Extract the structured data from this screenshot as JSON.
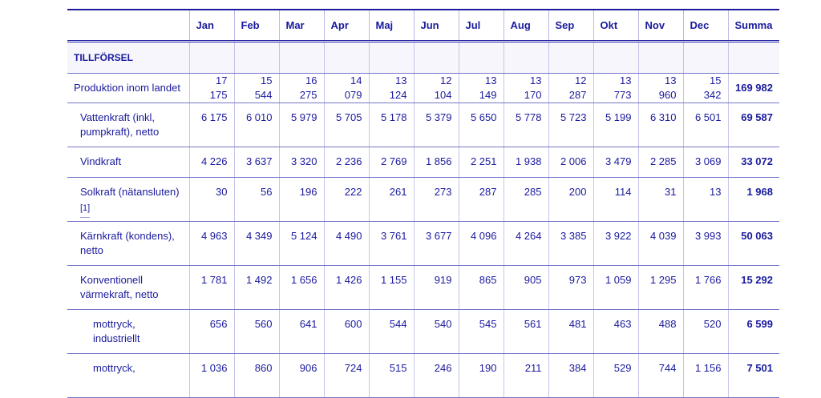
{
  "table": {
    "headers": [
      "",
      "Jan",
      "Feb",
      "Mar",
      "Apr",
      "Maj",
      "Jun",
      "Jul",
      "Aug",
      "Sep",
      "Okt",
      "Nov",
      "Dec",
      "Summa"
    ],
    "section": "TILLFÖRSEL",
    "rows": [
      {
        "label": "Produktion inom landet",
        "values": [
          "17 175",
          "15 544",
          "16 275",
          "14 079",
          "13 124",
          "12 104",
          "13 149",
          "13 170",
          "12 287",
          "13 773",
          "13 960",
          "15 342"
        ],
        "sum": "169 982"
      },
      {
        "label": "Vattenkraft (inkl, pumpkraft), netto",
        "values": [
          "6 175",
          "6 010",
          "5 979",
          "5 705",
          "5 178",
          "5 379",
          "5 650",
          "5 778",
          "5 723",
          "5 199",
          "6 310",
          "6 501"
        ],
        "sum": "69 587"
      },
      {
        "label": "Vindkraft",
        "values": [
          "4 226",
          "3 637",
          "3 320",
          "2 236",
          "2 769",
          "1 856",
          "2 251",
          "1 938",
          "2 006",
          "3 479",
          "2 285",
          "3 069"
        ],
        "sum": "33 072"
      },
      {
        "label": "Solkraft (nätansluten)",
        "footnote": "[1]",
        "values": [
          "30",
          "56",
          "196",
          "222",
          "261",
          "273",
          "287",
          "285",
          "200",
          "114",
          "31",
          "13"
        ],
        "sum": "1 968"
      },
      {
        "label": "Kärnkraft (kondens), netto",
        "values": [
          "4 963",
          "4 349",
          "5 124",
          "4 490",
          "3 761",
          "3 677",
          "4 096",
          "4 264",
          "3 385",
          "3 922",
          "4 039",
          "3 993"
        ],
        "sum": "50 063"
      },
      {
        "label": "Konventionell värmekraft, netto",
        "values": [
          "1 781",
          "1 492",
          "1 656",
          "1 426",
          "1 155",
          "919",
          "865",
          "905",
          "973",
          "1 059",
          "1 295",
          "1 766"
        ],
        "sum": "15 292"
      },
      {
        "label": "mottryck, industriellt",
        "values": [
          "656",
          "560",
          "641",
          "600",
          "544",
          "540",
          "545",
          "561",
          "481",
          "463",
          "488",
          "520"
        ],
        "sum": "6 599"
      },
      {
        "label": "mottryck,",
        "values": [
          "1 036",
          "860",
          "906",
          "724",
          "515",
          "246",
          "190",
          "211",
          "384",
          "529",
          "744",
          "1 156"
        ],
        "sum": "7 501"
      }
    ]
  }
}
